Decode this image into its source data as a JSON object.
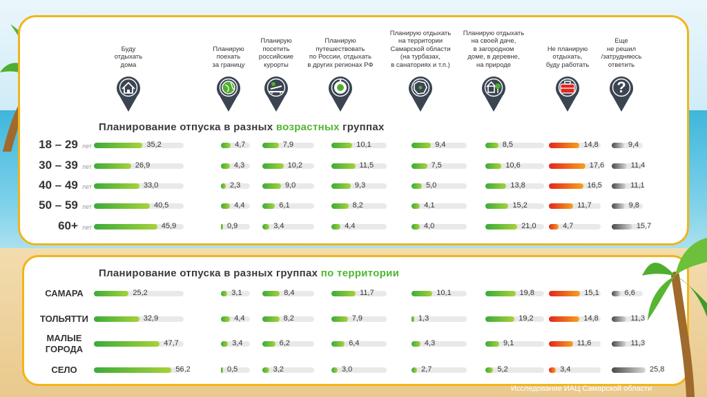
{
  "columns": [
    {
      "label": "Буду\nотдыхать\nдома",
      "icon": "house-icon"
    },
    {
      "label": "Планирую\nпоехать\nза границу",
      "icon": "globe-icon"
    },
    {
      "label": "Планирую\nпосетить\nроссийские\nкурорты",
      "icon": "sunbed-icon"
    },
    {
      "label": "Планирую\nпутешествовать\nпо России, отдыхать\nв других регионах РФ",
      "icon": "location-icon"
    },
    {
      "label": "Планирую отдыхать\nна территории\nСамарской области\n(на турбазах,\nв санаториях и т.п.)",
      "icon": "region-map-icon"
    },
    {
      "label": "Планирую отдыхать\nна своей даче,\nв загородном\nдоме, в деревне,\nна природе",
      "icon": "country-house-icon"
    },
    {
      "label": "Не планирую\nотдыхать,\nбуду работать",
      "icon": "briefcase-icon"
    },
    {
      "label": "Еще\nне решил\n/затрудняюсь\nответить",
      "icon": "question-icon"
    }
  ],
  "colors": {
    "green": "#3cab3a",
    "green_light": "#a6d23a",
    "red": "#e3261d",
    "orange": "#f5a020",
    "gray_dark": "#4a4a4a",
    "gray_light": "#d9d9d9",
    "pin": "#3b4552",
    "accent_border": "#f1b418"
  },
  "chart_data": [
    {
      "type": "bar",
      "title_parts": [
        "Планирование отпуска в разных ",
        "возрастных",
        " группах"
      ],
      "unit_suffix": "лет",
      "categories": [
        "18 – 29",
        "30 – 39",
        "40 – 49",
        "50 – 59",
        "60+"
      ],
      "series": [
        {
          "name": "Буду отдыхать дома",
          "labels": [
            "35,2",
            "26,9",
            "33,0",
            "40,5",
            "45,9"
          ],
          "values": [
            35.2,
            26.9,
            33.0,
            40.5,
            45.9
          ]
        },
        {
          "name": "Планирую поехать за границу",
          "labels": [
            "4,7",
            "4,3",
            "2,3",
            "4,4",
            "0,9"
          ],
          "values": [
            4.7,
            4.3,
            2.3,
            4.4,
            0.9
          ]
        },
        {
          "name": "Планирую посетить российские курорты",
          "labels": [
            "7,9",
            "10,2",
            "9,0",
            "6,1",
            "3,4"
          ],
          "values": [
            7.9,
            10.2,
            9.0,
            6.1,
            3.4
          ]
        },
        {
          "name": "Планирую путешествовать по России, отдыхать в других регионах РФ",
          "labels": [
            "10,1",
            "11,5",
            "9,3",
            "8,2",
            "4,4"
          ],
          "values": [
            10.1,
            11.5,
            9.3,
            8.2,
            4.4
          ]
        },
        {
          "name": "Планирую отдыхать на территории Самарской области (на турбазах, в санаториях и т.п.)",
          "labels": [
            "9,4",
            "7,5",
            "5,0",
            "4,1",
            "4,0"
          ],
          "values": [
            9.4,
            7.5,
            5.0,
            4.1,
            4.0
          ]
        },
        {
          "name": "Планирую отдыхать на своей даче, в загородном доме, в деревне, на природе",
          "labels": [
            "8,5",
            "10,6",
            "13,8",
            "15,2",
            "21,0"
          ],
          "values": [
            8.5,
            10.6,
            13.8,
            15.2,
            21.0
          ]
        },
        {
          "name": "Не планирую отдыхать, буду работать",
          "labels": [
            "14,8",
            "17,6",
            "16,5",
            "11,7",
            "4,7"
          ],
          "values": [
            14.8,
            17.6,
            16.5,
            11.7,
            4.7
          ]
        },
        {
          "name": "Еще не решил /затрудняюсь ответить",
          "labels": [
            "9,4",
            "11,4",
            "11,1",
            "9,8",
            "15,7"
          ],
          "values": [
            9.4,
            11.4,
            11.1,
            9.8,
            15.7
          ]
        }
      ]
    },
    {
      "type": "bar",
      "title_parts": [
        "Планирование отпуска в разных группах ",
        "по территории",
        ""
      ],
      "categories": [
        "САМАРА",
        "ТОЛЬЯТТИ",
        "МАЛЫЕ\nГОРОДА",
        "СЕЛО"
      ],
      "series": [
        {
          "name": "Буду отдыхать дома",
          "labels": [
            "25,2",
            "32,9",
            "47,7",
            "56,2"
          ],
          "values": [
            25.2,
            32.9,
            47.7,
            56.2
          ]
        },
        {
          "name": "Планирую поехать за границу",
          "labels": [
            "3,1",
            "4,4",
            "3,4",
            "0,5"
          ],
          "values": [
            3.1,
            4.4,
            3.4,
            0.5
          ]
        },
        {
          "name": "Планирую посетить российские курорты",
          "labels": [
            "8,4",
            "8,2",
            "6,2",
            "3,2"
          ],
          "values": [
            8.4,
            8.2,
            6.2,
            3.2
          ]
        },
        {
          "name": "Планирую путешествовать по России, отдыхать в других регионах РФ",
          "labels": [
            "11,7",
            "7,9",
            "6,4",
            "3,0"
          ],
          "values": [
            11.7,
            7.9,
            6.4,
            3.0
          ]
        },
        {
          "name": "Планирую отдыхать на территории Самарской области (на турбазах, в санаториях и т.п.)",
          "labels": [
            "10,1",
            "1,3",
            "4,3",
            "2,7"
          ],
          "values": [
            10.1,
            1.3,
            4.3,
            2.7
          ]
        },
        {
          "name": "Планирую отдыхать на своей даче, в загородном доме, в деревне, на природе",
          "labels": [
            "19,8",
            "19,2",
            "9,1",
            "5,2"
          ],
          "values": [
            19.8,
            19.2,
            9.1,
            5.2
          ]
        },
        {
          "name": "Не планирую отдыхать, буду работать",
          "labels": [
            "15,1",
            "14,8",
            "11,6",
            "3,4"
          ],
          "values": [
            15.1,
            14.8,
            11.6,
            3.4
          ]
        },
        {
          "name": "Еще не решил /затрудняюсь ответить",
          "labels": [
            "6,6",
            "11,3",
            "11,3",
            "25,8"
          ],
          "values": [
            6.6,
            11.3,
            11.3,
            25.8
          ]
        }
      ]
    }
  ],
  "footer": "Исследование ИАЦ Самарской области"
}
